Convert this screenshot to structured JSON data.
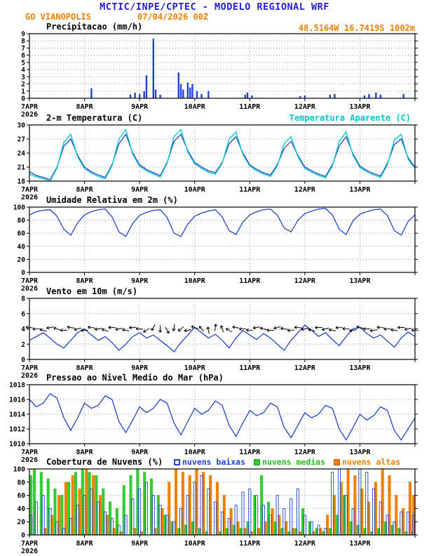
{
  "header": {
    "title": "MCTIC/INPE/CPTEC - MODELO REGIONAL WRF",
    "station": "GO VIANOPOLIS",
    "run_datetime": "07/04/2026 00Z",
    "location": "48.5164W 16.7419S 1002m"
  },
  "colors": {
    "title_blue": "#2222cc",
    "orange": "#f08000",
    "line_blue": "#2244cc",
    "cyan": "#00c8c8",
    "green": "#33cc33",
    "grid_gray": "#999999"
  },
  "x_axis": {
    "hours_total": 168,
    "tick_interval_hours": 24,
    "tick_labels": [
      "7APR",
      "8APR",
      "9APR",
      "10APR",
      "11APR",
      "12APR",
      "13APR"
    ],
    "year_label": "2026"
  },
  "chart_data": [
    {
      "type": "bar",
      "title": "Precipitacao (mm/h)",
      "ylim": [
        0,
        9
      ],
      "yticks": [
        0,
        1,
        2,
        3,
        4,
        5,
        6,
        7,
        8,
        9
      ],
      "bar_color": "#2244cc",
      "bars": [
        [
          27,
          1.4
        ],
        [
          44,
          0.5
        ],
        [
          46,
          0.8
        ],
        [
          48,
          0.6
        ],
        [
          50,
          1.0
        ],
        [
          51,
          3.2
        ],
        [
          54,
          8.3
        ],
        [
          55,
          1.2
        ],
        [
          57,
          0.5
        ],
        [
          65,
          3.6
        ],
        [
          66,
          2.0
        ],
        [
          67,
          1.2
        ],
        [
          69,
          2.2
        ],
        [
          70,
          1.5
        ],
        [
          71,
          2.0
        ],
        [
          73,
          1.0
        ],
        [
          75,
          0.6
        ],
        [
          78,
          1.0
        ],
        [
          94,
          0.5
        ],
        [
          95,
          0.8
        ],
        [
          97,
          0.4
        ],
        [
          118,
          0.3
        ],
        [
          120,
          0.4
        ],
        [
          131,
          0.5
        ],
        [
          133,
          0.6
        ],
        [
          146,
          0.4
        ],
        [
          148,
          0.6
        ],
        [
          151,
          0.8
        ],
        [
          153,
          0.5
        ],
        [
          163,
          0.6
        ]
      ]
    },
    {
      "type": "line",
      "title": "2-m Temperatura (C)",
      "legend": "Temperatura Aparente (C)",
      "ylim": [
        18,
        30
      ],
      "yticks": [
        18,
        21,
        24,
        27,
        30
      ],
      "x_step_hours": 3,
      "series": [
        {
          "name": "2-m Temperatura (C)",
          "color": "#2244cc",
          "values": [
            20.0,
            19.2,
            18.8,
            18.3,
            21.0,
            25.5,
            27.0,
            23.5,
            21.0,
            20.0,
            19.3,
            18.8,
            21.5,
            26.0,
            28.0,
            24.0,
            21.5,
            20.5,
            19.8,
            19.2,
            22.0,
            26.5,
            28.0,
            24.5,
            22.0,
            21.0,
            20.2,
            19.8,
            22.0,
            26.0,
            27.5,
            24.0,
            21.5,
            20.5,
            19.8,
            19.3,
            21.5,
            25.0,
            26.5,
            23.5,
            21.0,
            20.2,
            19.5,
            19.0,
            21.5,
            25.5,
            27.5,
            23.8,
            21.2,
            20.3,
            19.6,
            19.1,
            21.8,
            25.8,
            27.0,
            23.0,
            21.0
          ]
        },
        {
          "name": "Temperatura Aparente (C)",
          "color": "#00c8c8",
          "values": [
            19.5,
            18.9,
            18.5,
            18.0,
            20.8,
            26.3,
            28.0,
            23.2,
            20.7,
            19.7,
            19.0,
            18.5,
            21.3,
            27.0,
            29.0,
            23.7,
            21.2,
            20.2,
            19.5,
            18.9,
            21.8,
            27.5,
            29.0,
            24.2,
            21.7,
            20.7,
            19.9,
            19.5,
            21.8,
            27.0,
            28.5,
            23.7,
            21.2,
            20.2,
            19.5,
            19.0,
            21.2,
            26.0,
            27.5,
            23.2,
            20.7,
            19.9,
            19.2,
            18.7,
            21.2,
            26.5,
            28.5,
            23.5,
            20.9,
            20.0,
            19.3,
            18.8,
            21.5,
            26.8,
            28.0,
            22.7,
            20.7
          ]
        }
      ]
    },
    {
      "type": "line",
      "title": "Umidade Relativa em 2m (%)",
      "ylim": [
        0,
        100
      ],
      "yticks": [
        0,
        20,
        40,
        60,
        80,
        100
      ],
      "x_step_hours": 3,
      "series": [
        {
          "name": "Umidade Relativa em 2m",
          "color": "#2244cc",
          "values": [
            88,
            93,
            95,
            96,
            86,
            66,
            57,
            76,
            88,
            93,
            96,
            97,
            85,
            62,
            55,
            75,
            87,
            92,
            95,
            96,
            84,
            60,
            55,
            74,
            86,
            91,
            94,
            96,
            85,
            64,
            58,
            77,
            88,
            93,
            96,
            97,
            88,
            68,
            62,
            80,
            90,
            94,
            97,
            98,
            88,
            66,
            58,
            79,
            89,
            93,
            96,
            97,
            87,
            64,
            57,
            78,
            88
          ]
        }
      ]
    },
    {
      "type": "line",
      "title": "Vento em 10m (m/s)",
      "ylim": [
        0,
        8
      ],
      "yticks": [
        0,
        2,
        4,
        6,
        8
      ],
      "x_step_hours": 3,
      "series": [
        {
          "name": "Velocidade do Vento em 10m",
          "color": "#2244cc",
          "values": [
            2.5,
            3.0,
            3.5,
            2.8,
            2.0,
            1.5,
            2.5,
            3.5,
            4.0,
            3.2,
            2.5,
            3.0,
            2.2,
            1.2,
            2.0,
            3.0,
            3.5,
            2.8,
            3.2,
            2.5,
            1.8,
            1.0,
            2.2,
            3.2,
            4.2,
            3.5,
            2.8,
            3.3,
            2.5,
            1.5,
            2.8,
            3.8,
            3.2,
            2.6,
            3.4,
            2.8,
            2.0,
            1.2,
            2.5,
            3.5,
            4.5,
            3.8,
            3.0,
            3.5,
            2.6,
            1.8,
            3.0,
            4.0,
            4.2,
            3.4,
            2.8,
            3.2,
            2.4,
            1.6,
            2.8,
            3.6,
            3.0
          ]
        }
      ],
      "barbs": {
        "level": 4,
        "color": "#000000",
        "angles_deg": [
          185,
          175,
          195,
          170,
          200,
          180,
          190,
          165,
          178,
          188,
          172,
          198,
          182,
          168,
          192,
          176,
          186,
          150,
          120,
          90,
          60,
          100,
          140,
          170,
          200,
          230,
          260,
          280,
          250,
          210,
          190,
          175,
          185,
          170,
          195,
          180,
          165,
          190,
          175,
          185,
          170,
          195,
          180,
          165,
          190,
          175,
          185,
          170,
          195,
          180,
          170,
          185,
          175,
          190,
          180,
          170,
          185
        ]
      }
    },
    {
      "type": "line",
      "title": "Pressao ao Nivel Medio do Mar (hPa)",
      "ylim": [
        1010,
        1018
      ],
      "yticks": [
        1010,
        1012,
        1014,
        1016,
        1018
      ],
      "x_step_hours": 3,
      "series": [
        {
          "name": "Pressao ao Nivel Medio do Mar",
          "color": "#2244cc",
          "values": [
            1016.0,
            1015.0,
            1015.5,
            1016.8,
            1016.2,
            1013.5,
            1011.8,
            1013.5,
            1015.5,
            1014.8,
            1015.2,
            1016.5,
            1016.0,
            1013.0,
            1011.5,
            1013.2,
            1015.0,
            1014.2,
            1014.8,
            1016.0,
            1015.5,
            1012.8,
            1011.2,
            1013.0,
            1014.8,
            1014.0,
            1014.5,
            1015.8,
            1015.2,
            1012.5,
            1011.0,
            1012.8,
            1014.5,
            1013.8,
            1014.2,
            1015.5,
            1015.0,
            1012.2,
            1010.8,
            1012.5,
            1014.2,
            1013.5,
            1014.0,
            1015.2,
            1014.8,
            1012.0,
            1010.5,
            1012.2,
            1014.0,
            1013.2,
            1013.8,
            1015.0,
            1014.5,
            1011.8,
            1010.5,
            1012.0,
            1013.5
          ]
        }
      ]
    },
    {
      "type": "cloud-bars",
      "title": "Cobertura de Nuvens (%)",
      "ylim": [
        0,
        100
      ],
      "yticks": [
        0,
        20,
        40,
        60,
        80,
        100
      ],
      "x_step_hours": 3,
      "series": [
        {
          "name": "nuvens baixas",
          "color": "#2244cc",
          "filled": false,
          "values": [
            30,
            50,
            60,
            40,
            20,
            10,
            25,
            45,
            60,
            70,
            50,
            35,
            25,
            15,
            30,
            55,
            70,
            80,
            60,
            45,
            30,
            20,
            40,
            60,
            80,
            90,
            70,
            50,
            35,
            25,
            45,
            65,
            70,
            60,
            45,
            30,
            60,
            40,
            55,
            70,
            30,
            20,
            15,
            10,
            95,
            100,
            60,
            40,
            100,
            95,
            70,
            50,
            30,
            20,
            35,
            35,
            30
          ]
        },
        {
          "name": "nuvens medias",
          "color": "#33cc33",
          "filled": true,
          "values": [
            90,
            100,
            95,
            85,
            70,
            60,
            80,
            95,
            100,
            95,
            90,
            70,
            50,
            40,
            75,
            90,
            100,
            95,
            85,
            60,
            30,
            20,
            10,
            15,
            20,
            10,
            5,
            0,
            5,
            10,
            15,
            10,
            20,
            60,
            90,
            50,
            20,
            10,
            5,
            10,
            40,
            20,
            10,
            5,
            10,
            30,
            60,
            20,
            15,
            10,
            5,
            10,
            20,
            15,
            10,
            5,
            5
          ]
        },
        {
          "name": "nuvens altas",
          "color": "#f08000",
          "filled": true,
          "values": [
            0,
            0,
            10,
            30,
            60,
            80,
            90,
            70,
            100,
            90,
            60,
            30,
            10,
            5,
            0,
            10,
            5,
            0,
            10,
            40,
            80,
            100,
            95,
            90,
            100,
            95,
            90,
            80,
            60,
            40,
            20,
            10,
            5,
            10,
            20,
            40,
            30,
            20,
            10,
            5,
            0,
            5,
            10,
            30,
            60,
            80,
            100,
            90,
            70,
            50,
            80,
            100,
            90,
            60,
            40,
            80,
            60
          ]
        }
      ]
    }
  ]
}
